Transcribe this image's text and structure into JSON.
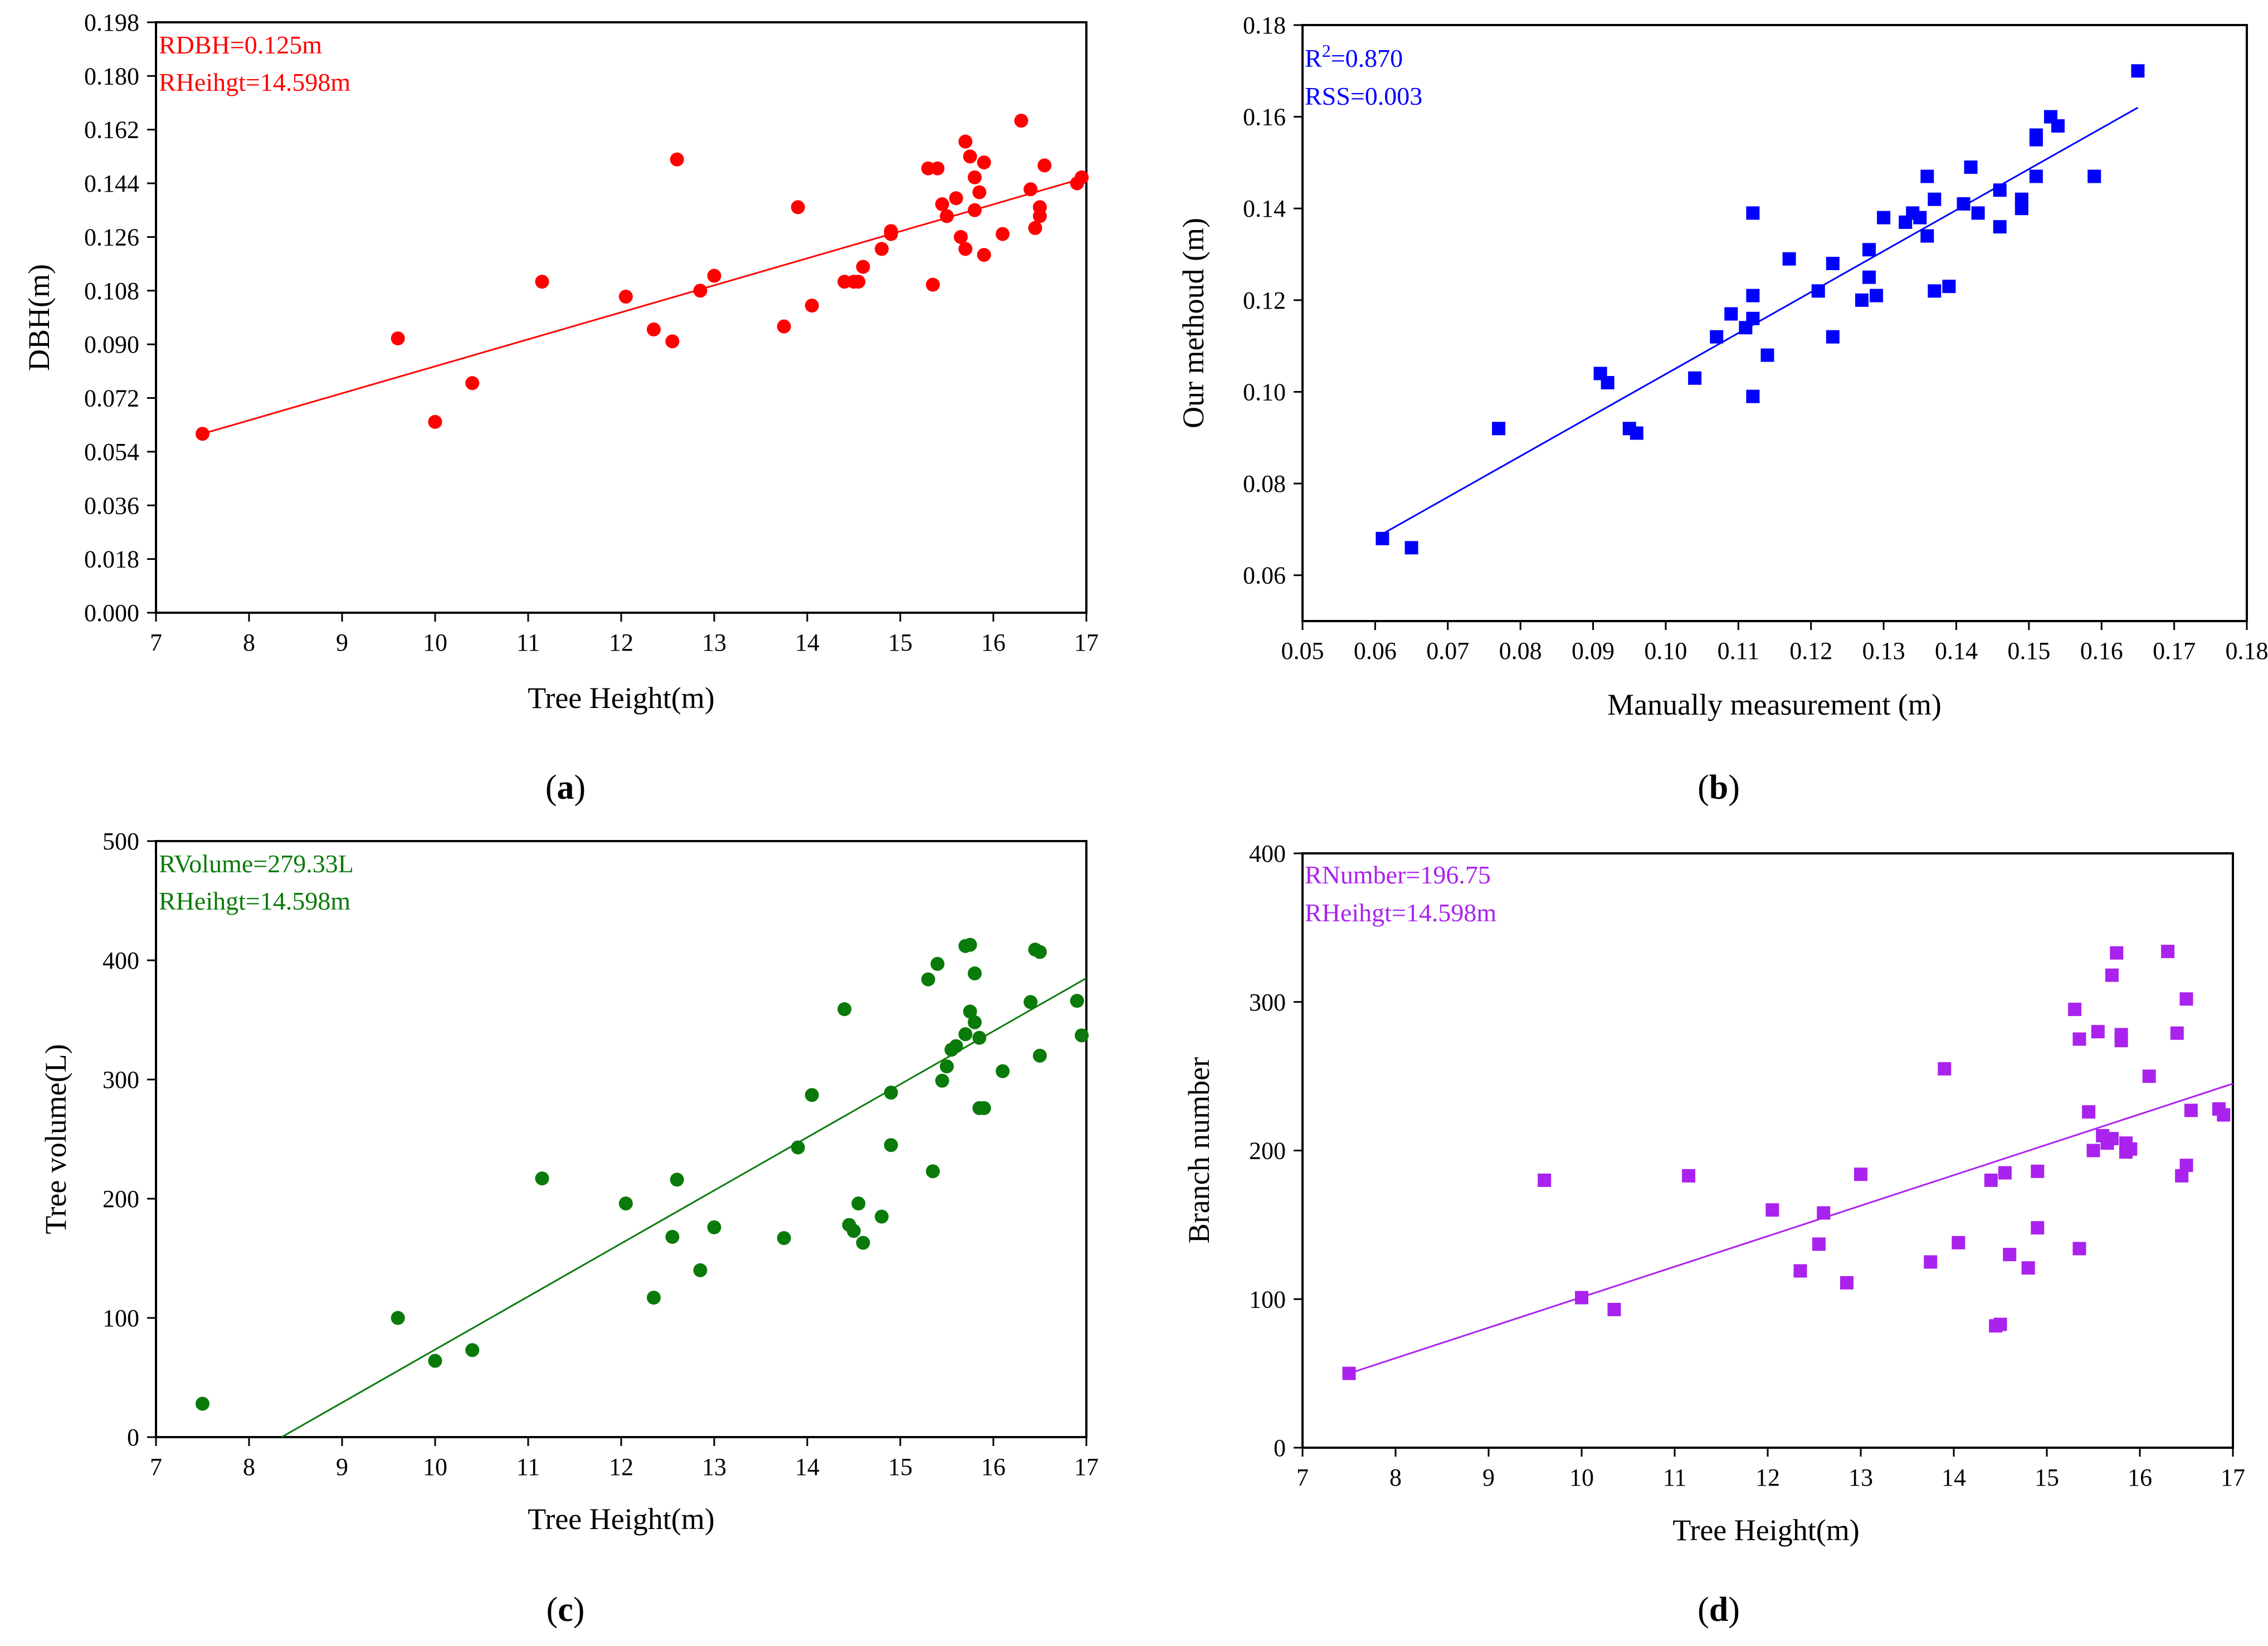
{
  "chart_data": [
    {
      "id": "a",
      "type": "scatter",
      "panel_label": "a",
      "xlabel": "Tree Height(m)",
      "ylabel": "DBH(m)",
      "xlim": [
        7,
        17
      ],
      "ylim": [
        0,
        0.198
      ],
      "xticks": [
        7,
        8,
        9,
        10,
        11,
        12,
        13,
        14,
        15,
        16,
        17
      ],
      "yticks": [
        0.0,
        0.018,
        0.036,
        0.054,
        0.072,
        0.09,
        0.108,
        0.126,
        0.144,
        0.162,
        0.18,
        0.198
      ],
      "xtick_labels": [
        "7",
        "8",
        "9",
        "10",
        "11",
        "12",
        "13",
        "14",
        "15",
        "16",
        "17"
      ],
      "ytick_labels": [
        "0.000",
        "0.018",
        "0.036",
        "0.054",
        "0.072",
        "0.090",
        "0.108",
        "0.126",
        "0.144",
        "0.162",
        "0.180",
        "0.198"
      ],
      "color": "#ff0000",
      "marker": "circle",
      "annotations": [
        "RDBH=0.125m",
        "RHeihgt=14.598m"
      ],
      "fit_line": {
        "x": [
          7.5,
          17
        ],
        "y": [
          0.06,
          0.146
        ]
      },
      "points": {
        "x": [
          7.5,
          9.6,
          10.0,
          10.4,
          11.15,
          12.05,
          12.35,
          12.55,
          12.6,
          12.85,
          13.0,
          13.75,
          13.9,
          14.05,
          14.4,
          14.5,
          14.55,
          14.6,
          14.8,
          14.9,
          14.9,
          15.3,
          15.35,
          15.4,
          15.45,
          15.5,
          15.6,
          15.65,
          15.7,
          15.7,
          15.75,
          15.8,
          15.8,
          15.85,
          15.9,
          15.9,
          16.1,
          16.3,
          16.4,
          16.45,
          16.5,
          16.5,
          16.55,
          16.9,
          16.95
        ],
        "y": [
          0.06,
          0.092,
          0.064,
          0.077,
          0.111,
          0.106,
          0.095,
          0.091,
          0.152,
          0.108,
          0.113,
          0.096,
          0.136,
          0.103,
          0.111,
          0.111,
          0.111,
          0.116,
          0.122,
          0.127,
          0.128,
          0.149,
          0.11,
          0.149,
          0.137,
          0.133,
          0.139,
          0.126,
          0.122,
          0.158,
          0.153,
          0.135,
          0.146,
          0.141,
          0.151,
          0.12,
          0.127,
          0.165,
          0.142,
          0.129,
          0.133,
          0.136,
          0.15,
          0.144,
          0.146
        ]
      }
    },
    {
      "id": "b",
      "type": "scatter",
      "panel_label": "b",
      "xlabel": "Manually measurement (m)",
      "ylabel": "Our methoud (m)",
      "xlim": [
        0.05,
        0.18
      ],
      "ylim": [
        0.05,
        0.18
      ],
      "xticks": [
        0.05,
        0.06,
        0.07,
        0.08,
        0.09,
        0.1,
        0.11,
        0.12,
        0.13,
        0.14,
        0.15,
        0.16,
        0.17,
        0.18
      ],
      "yticks": [
        0.06,
        0.08,
        0.1,
        0.12,
        0.14,
        0.16,
        0.18
      ],
      "xtick_labels": [
        "0.05",
        "0.06",
        "0.07",
        "0.08",
        "0.09",
        "0.10",
        "0.11",
        "0.12",
        "0.13",
        "0.14",
        "0.15",
        "0.16",
        "0.17",
        "0.18"
      ],
      "ytick_labels": [
        "0.06",
        "0.08",
        "0.10",
        "0.12",
        "0.14",
        "0.16",
        "0.18"
      ],
      "color": "#0000ff",
      "marker": "square",
      "annotations": [
        "R",
        "2",
        "=0.870",
        "RSS=0.003"
      ],
      "fit_line": {
        "x": [
          0.061,
          0.165
        ],
        "y": [
          0.069,
          0.162
        ]
      },
      "points": {
        "x": [
          0.061,
          0.065,
          0.077,
          0.091,
          0.092,
          0.095,
          0.096,
          0.104,
          0.107,
          0.109,
          0.111,
          0.112,
          0.112,
          0.112,
          0.112,
          0.114,
          0.117,
          0.121,
          0.123,
          0.123,
          0.127,
          0.128,
          0.128,
          0.129,
          0.13,
          0.133,
          0.134,
          0.135,
          0.136,
          0.136,
          0.137,
          0.137,
          0.139,
          0.141,
          0.142,
          0.143,
          0.146,
          0.146,
          0.149,
          0.149,
          0.151,
          0.151,
          0.151,
          0.153,
          0.154,
          0.159,
          0.165
        ],
        "y": [
          0.068,
          0.066,
          0.092,
          0.104,
          0.102,
          0.092,
          0.091,
          0.103,
          0.112,
          0.117,
          0.114,
          0.121,
          0.116,
          0.139,
          0.099,
          0.108,
          0.129,
          0.122,
          0.128,
          0.112,
          0.12,
          0.131,
          0.125,
          0.121,
          0.138,
          0.137,
          0.139,
          0.138,
          0.147,
          0.134,
          0.142,
          0.122,
          0.123,
          0.141,
          0.149,
          0.139,
          0.144,
          0.136,
          0.14,
          0.142,
          0.156,
          0.155,
          0.147,
          0.16,
          0.158,
          0.147,
          0.17
        ]
      }
    },
    {
      "id": "c",
      "type": "scatter",
      "panel_label": "c",
      "xlabel": "Tree Height(m)",
      "ylabel": "Tree volume(L)",
      "xlim": [
        7,
        17
      ],
      "ylim": [
        0,
        500
      ],
      "xticks": [
        7,
        8,
        9,
        10,
        11,
        12,
        13,
        14,
        15,
        16,
        17
      ],
      "yticks": [
        0,
        100,
        200,
        300,
        400,
        500
      ],
      "xtick_labels": [
        "7",
        "8",
        "9",
        "10",
        "11",
        "12",
        "13",
        "14",
        "15",
        "16",
        "17"
      ],
      "ytick_labels": [
        "0",
        "100",
        "200",
        "300",
        "400",
        "500"
      ],
      "color": "#0a7a0a",
      "marker": "circle",
      "annotations": [
        "RVolume=279.33L",
        "RHeihgt=14.598m"
      ],
      "fit_line": {
        "x": [
          8.35,
          17
        ],
        "y": [
          0,
          385
        ]
      },
      "points": {
        "x": [
          7.5,
          9.6,
          10.0,
          10.4,
          11.15,
          12.05,
          12.35,
          12.55,
          12.6,
          12.85,
          13.0,
          13.75,
          13.9,
          14.05,
          14.4,
          14.45,
          14.5,
          14.55,
          14.6,
          14.8,
          14.9,
          14.9,
          15.3,
          15.35,
          15.4,
          15.45,
          15.5,
          15.55,
          15.6,
          15.7,
          15.7,
          15.75,
          15.75,
          15.8,
          15.8,
          15.85,
          15.85,
          15.9,
          16.1,
          16.4,
          16.45,
          16.5,
          16.5,
          16.9,
          16.95
        ],
        "y": [
          28,
          100,
          64,
          73,
          217,
          196,
          117,
          168,
          216,
          140,
          176,
          167,
          243,
          287,
          359,
          178,
          173,
          196,
          163,
          185,
          245,
          289,
          384,
          223,
          397,
          299,
          311,
          325,
          328,
          338,
          412,
          357,
          413,
          389,
          348,
          335,
          276,
          276,
          307,
          365,
          409,
          320,
          407,
          366,
          337
        ]
      }
    },
    {
      "id": "d",
      "type": "scatter",
      "panel_label": "d",
      "xlabel": "Tree Height(m)",
      "ylabel": "Branch number",
      "xlim": [
        7,
        17
      ],
      "ylim": [
        0,
        400
      ],
      "xticks": [
        7,
        8,
        9,
        10,
        11,
        12,
        13,
        14,
        15,
        16,
        17
      ],
      "yticks": [
        0,
        100,
        200,
        300,
        400
      ],
      "xtick_labels": [
        "7",
        "8",
        "9",
        "10",
        "11",
        "12",
        "13",
        "14",
        "15",
        "16",
        "17"
      ],
      "ytick_labels": [
        "0",
        "100",
        "200",
        "300",
        "400"
      ],
      "color": "#aa22ee",
      "marker": "square",
      "annotations": [
        "RNumber=196.75",
        "RHeihgt=14.598m"
      ],
      "fit_line": {
        "x": [
          7.5,
          17
        ],
        "y": [
          50,
          245
        ]
      },
      "points": {
        "x": [
          7.5,
          9.6,
          10.0,
          10.35,
          11.15,
          12.05,
          12.35,
          12.55,
          12.6,
          12.85,
          13.0,
          13.75,
          13.9,
          14.05,
          14.4,
          14.45,
          14.5,
          14.55,
          14.6,
          14.8,
          14.9,
          14.9,
          15.3,
          15.35,
          15.35,
          15.45,
          15.5,
          15.55,
          15.6,
          15.65,
          15.7,
          15.7,
          15.75,
          15.8,
          15.8,
          15.85,
          15.85,
          15.9,
          16.1,
          16.3,
          16.4,
          16.45,
          16.5,
          16.5,
          16.55,
          16.85,
          16.9
        ],
        "y": [
          50,
          180,
          101,
          93,
          183,
          160,
          119,
          137,
          158,
          111,
          184,
          125,
          255,
          138,
          180,
          82,
          83,
          185,
          130,
          121,
          148,
          186,
          295,
          134,
          275,
          226,
          200,
          280,
          210,
          205,
          208,
          318,
          333,
          278,
          274,
          205,
          199,
          201,
          250,
          334,
          279,
          183,
          302,
          190,
          227,
          228,
          224
        ]
      }
    }
  ]
}
